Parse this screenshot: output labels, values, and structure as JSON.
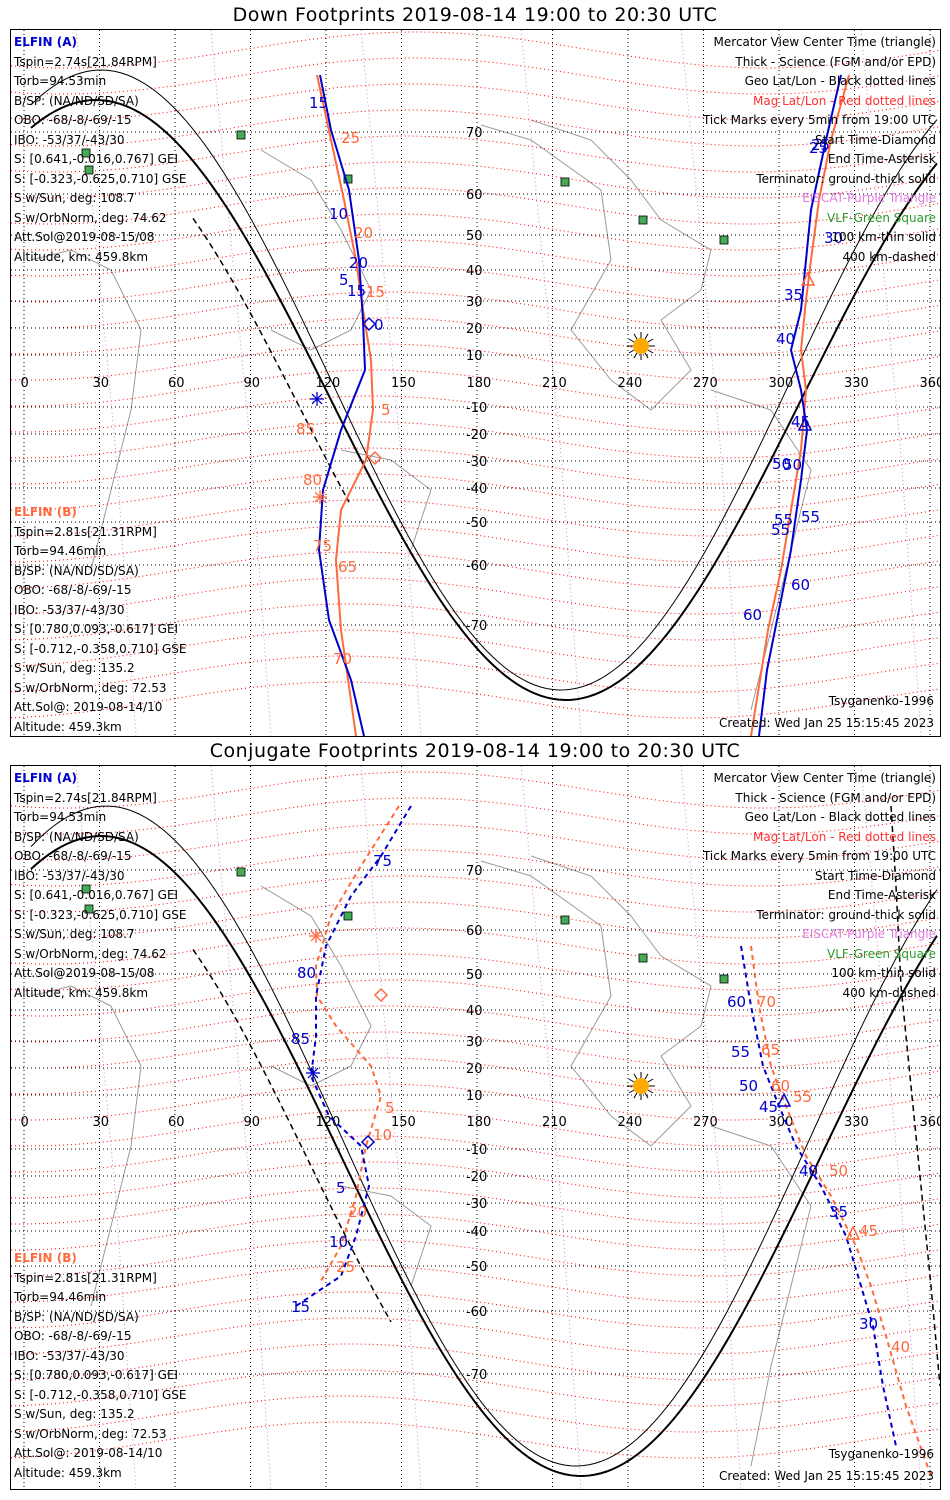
{
  "panels": [
    {
      "title": "Down Footprints 2019-08-14 19:00 to 20:30 UTC",
      "elfin_a": {
        "name": "ELFIN (A)",
        "tspin": "Tspin=2.74s[21.84RPM]",
        "torb": "Torb=94.53min",
        "bsp": "B/SP: (NA/ND/SD/SA)",
        "obo": "OBO: -68/-8/-69/-15",
        "ibo": "IBO: -53/37/-43/30",
        "s_gei": "S: [0.641,-0.016,0.767] GEI",
        "s_gse": "S: [-0.323,-0.625,0.710] GSE",
        "s_sun": "S w/Sun, deg: 108.7",
        "s_orb": "S w/OrbNorm, deg: 74.62",
        "att": "Att.Sol@2019-08-15/08",
        "alt": "Altitude, km: 459.8km"
      },
      "elfin_b": {
        "name": "ELFIN (B)",
        "tspin": "Tspin=2.81s[21.31RPM]",
        "torb": "Torb=94.46min",
        "bsp": "B/SP: (NA/ND/SD/SA)",
        "obo": "OBO: -68/-8/-69/-15",
        "ibo": "IBO: -53/37/-43/30",
        "s_gei": "S: [0.780,0.093,-0.617] GEI",
        "s_gse": "S: [-0.712,-0.358,0.710] GSE",
        "s_sun": "S w/Sun, deg: 135.2",
        "s_orb": "S w/OrbNorm, deg: 72.53",
        "att": "Att.Sol@: 2019-08-14/10",
        "alt": "Altitude: 459.3km"
      },
      "legend": {
        "l1": "Mercator View Center Time (triangle)",
        "l2": "Thick - Science (FGM and/or EPD)",
        "l3": "Geo Lat/Lon - Black dotted lines",
        "l4": "Mag Lat/Lon - Red dotted lines",
        "l5": "Tick Marks every 5min from 19:00 UTC",
        "l6": "Start Time-Diamond",
        "l7": "End Time-Asterisk",
        "l8": "Terminator: ground-thick solid",
        "l9": "EISCAT-Purple Triangle",
        "l10": "VLF-Green Square",
        "l11": "100 km-thin solid",
        "l12": "400 km-dashed"
      },
      "model": "Tsyganenko-1996",
      "created": "Created: Wed Jan 25 15:15:45 2023",
      "ticks_a": [
        "15",
        "25",
        "10",
        "20",
        "5",
        "15",
        "0",
        "30",
        "25",
        "40",
        "35",
        "45",
        "55",
        "50",
        "50",
        "55",
        "60",
        "55",
        "60"
      ],
      "ticks_b": [
        "25",
        "20",
        "15",
        "5",
        "85",
        "80",
        "75",
        "65",
        "70"
      ]
    },
    {
      "title": "Conjugate Footprints 2019-08-14 19:00 to 20:30 UTC",
      "elfin_a": {
        "name": "ELFIN (A)",
        "tspin": "Tspin=2.74s[21.84RPM]",
        "torb": "Torb=94.53min",
        "bsp": "B/SP: (NA/ND/SD/SA)",
        "obo": "OBO: -68/-8/-69/-15",
        "ibo": "IBO: -53/37/-43/30",
        "s_gei": "S: [0.641,-0.016,0.767] GEI",
        "s_gse": "S: [-0.323,-0.625,0.710] GSE",
        "s_sun": "S w/Sun, deg: 108.7",
        "s_orb": "S w/OrbNorm, deg: 74.62",
        "att": "Att.Sol@2019-08-15/08",
        "alt": "Altitude, km: 459.8km"
      },
      "elfin_b": {
        "name": "ELFIN (B)",
        "tspin": "Tspin=2.81s[21.31RPM]",
        "torb": "Torb=94.46min",
        "bsp": "B/SP: (NA/ND/SD/SA)",
        "obo": "OBO: -68/-8/-69/-15",
        "ibo": "IBO: -53/37/-43/30",
        "s_gei": "S: [0.780,0.093,-0.617] GEI",
        "s_gse": "S: [-0.712,-0.358,0.710] GSE",
        "s_sun": "S w/Sun, deg: 135.2",
        "s_orb": "S w/OrbNorm, deg: 72.53",
        "att": "Att.Sol@: 2019-08-14/10",
        "alt": "Altitude: 459.3km"
      },
      "legend": {
        "l1": "Mercator View Center Time (triangle)",
        "l2": "Thick - Science (FGM and/or EPD)",
        "l3": "Geo Lat/Lon - Black dotted lines",
        "l4": "Mag Lat/Lon - Red dotted lines",
        "l5": "Tick Marks every 5min from 19:00 UTC",
        "l6": "Start Time-Diamond",
        "l7": "End Time-Asterisk",
        "l8": "Terminator: ground-thick solid",
        "l9": "EISCAT-Purple Triangle",
        "l10": "VLF-Green Square",
        "l11": "100 km-thin solid",
        "l12": "400 km-dashed"
      },
      "model": "Tsyganenko-1996",
      "created": "Created: Wed Jan 25 15:15:45 2023",
      "ticks_a": [
        "75",
        "80",
        "85",
        "5",
        "10",
        "15",
        "60",
        "55",
        "50",
        "45",
        "40",
        "35",
        "30"
      ],
      "ticks_b": [
        "5",
        "10",
        "20",
        "25",
        "70",
        "65",
        "60",
        "55",
        "50",
        "45",
        "40"
      ]
    }
  ],
  "axes": {
    "lon_ticks": [
      "0",
      "30",
      "60",
      "90",
      "120",
      "150",
      "180",
      "210",
      "240",
      "270",
      "300",
      "330",
      "360"
    ],
    "lat_ticks": [
      "70",
      "60",
      "50",
      "40",
      "30",
      "20",
      "10",
      "-10",
      "-20",
      "-30",
      "-40",
      "-50",
      "-60",
      "-70"
    ]
  },
  "colors": {
    "elfin_a": "#0000cc",
    "elfin_b": "#ff6a3c",
    "mag_grid": "#ff0000",
    "eiscat": "#e07ae0",
    "vlf": "#2a9a2a",
    "sun": "#ffaa00"
  },
  "icons": [
    "sun-icon",
    "vlf-square-icon",
    "eiscat-triangle-icon",
    "start-diamond-icon",
    "end-asterisk-icon"
  ]
}
